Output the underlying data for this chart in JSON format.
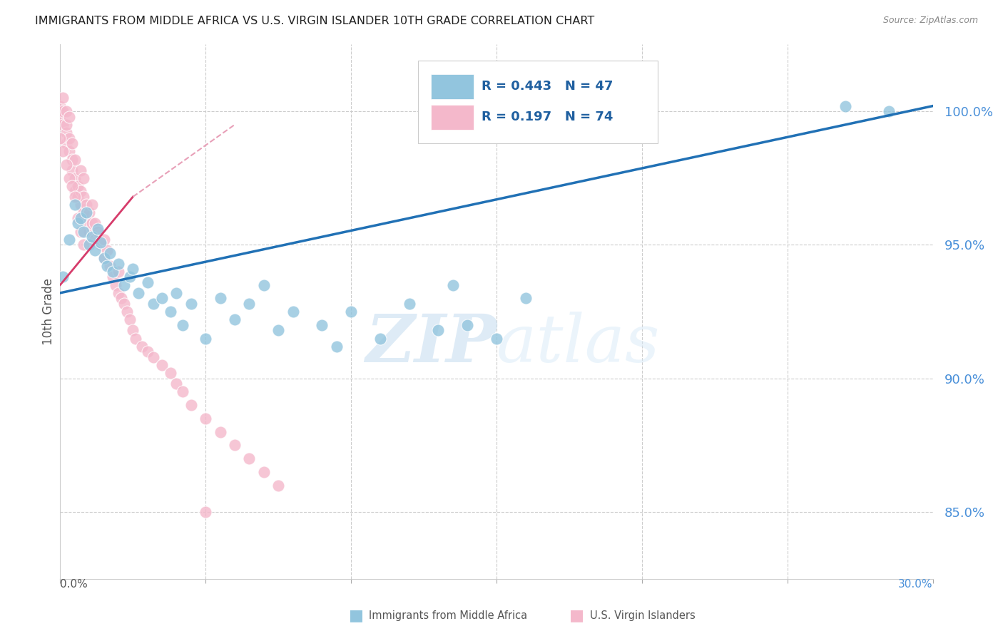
{
  "title": "IMMIGRANTS FROM MIDDLE AFRICA VS U.S. VIRGIN ISLANDER 10TH GRADE CORRELATION CHART",
  "source": "Source: ZipAtlas.com",
  "ylabel": "10th Grade",
  "right_yticks": [
    85.0,
    90.0,
    95.0,
    100.0
  ],
  "right_yticklabels": [
    "85.0%",
    "90.0%",
    "95.0%",
    "100.0%"
  ],
  "watermark_zip": "ZIP",
  "watermark_atlas": "atlas",
  "legend_blue_r": "R = 0.443",
  "legend_blue_n": "N = 47",
  "legend_pink_r": "R = 0.197",
  "legend_pink_n": "N = 74",
  "blue_color": "#92c5de",
  "pink_color": "#f4b8cb",
  "blue_line_color": "#2171b5",
  "pink_line_color": "#d63c6b",
  "pink_dash_color": "#e8a0b8",
  "blue_scatter": [
    [
      0.001,
      93.8
    ],
    [
      0.003,
      95.2
    ],
    [
      0.005,
      96.5
    ],
    [
      0.006,
      95.8
    ],
    [
      0.007,
      96.0
    ],
    [
      0.008,
      95.5
    ],
    [
      0.009,
      96.2
    ],
    [
      0.01,
      95.0
    ],
    [
      0.011,
      95.3
    ],
    [
      0.012,
      94.8
    ],
    [
      0.013,
      95.6
    ],
    [
      0.014,
      95.1
    ],
    [
      0.015,
      94.5
    ],
    [
      0.016,
      94.2
    ],
    [
      0.017,
      94.7
    ],
    [
      0.018,
      94.0
    ],
    [
      0.02,
      94.3
    ],
    [
      0.022,
      93.5
    ],
    [
      0.024,
      93.8
    ],
    [
      0.025,
      94.1
    ],
    [
      0.027,
      93.2
    ],
    [
      0.03,
      93.6
    ],
    [
      0.032,
      92.8
    ],
    [
      0.035,
      93.0
    ],
    [
      0.038,
      92.5
    ],
    [
      0.04,
      93.2
    ],
    [
      0.042,
      92.0
    ],
    [
      0.045,
      92.8
    ],
    [
      0.05,
      91.5
    ],
    [
      0.055,
      93.0
    ],
    [
      0.06,
      92.2
    ],
    [
      0.065,
      92.8
    ],
    [
      0.07,
      93.5
    ],
    [
      0.075,
      91.8
    ],
    [
      0.08,
      92.5
    ],
    [
      0.09,
      92.0
    ],
    [
      0.095,
      91.2
    ],
    [
      0.1,
      92.5
    ],
    [
      0.11,
      91.5
    ],
    [
      0.12,
      92.8
    ],
    [
      0.13,
      91.8
    ],
    [
      0.135,
      93.5
    ],
    [
      0.14,
      92.0
    ],
    [
      0.15,
      91.5
    ],
    [
      0.16,
      93.0
    ],
    [
      0.27,
      100.2
    ],
    [
      0.285,
      100.0
    ]
  ],
  "pink_scatter": [
    [
      0.0,
      100.2
    ],
    [
      0.0,
      99.8
    ],
    [
      0.001,
      100.5
    ],
    [
      0.001,
      99.5
    ],
    [
      0.001,
      100.0
    ],
    [
      0.002,
      99.2
    ],
    [
      0.002,
      98.8
    ],
    [
      0.002,
      99.5
    ],
    [
      0.002,
      100.0
    ],
    [
      0.003,
      99.0
    ],
    [
      0.003,
      98.5
    ],
    [
      0.003,
      99.8
    ],
    [
      0.004,
      98.2
    ],
    [
      0.004,
      97.8
    ],
    [
      0.004,
      98.8
    ],
    [
      0.005,
      97.5
    ],
    [
      0.005,
      97.0
    ],
    [
      0.005,
      98.2
    ],
    [
      0.006,
      97.2
    ],
    [
      0.006,
      96.8
    ],
    [
      0.007,
      96.5
    ],
    [
      0.007,
      97.0
    ],
    [
      0.007,
      97.8
    ],
    [
      0.008,
      96.2
    ],
    [
      0.008,
      96.8
    ],
    [
      0.008,
      97.5
    ],
    [
      0.009,
      95.8
    ],
    [
      0.009,
      96.5
    ],
    [
      0.01,
      95.5
    ],
    [
      0.01,
      96.2
    ],
    [
      0.011,
      95.8
    ],
    [
      0.011,
      96.5
    ],
    [
      0.012,
      95.2
    ],
    [
      0.012,
      95.8
    ],
    [
      0.013,
      95.5
    ],
    [
      0.014,
      95.0
    ],
    [
      0.015,
      94.5
    ],
    [
      0.015,
      95.2
    ],
    [
      0.016,
      94.8
    ],
    [
      0.017,
      94.2
    ],
    [
      0.018,
      93.8
    ],
    [
      0.019,
      93.5
    ],
    [
      0.02,
      93.2
    ],
    [
      0.02,
      94.0
    ],
    [
      0.021,
      93.0
    ],
    [
      0.022,
      92.8
    ],
    [
      0.023,
      92.5
    ],
    [
      0.024,
      92.2
    ],
    [
      0.025,
      91.8
    ],
    [
      0.026,
      91.5
    ],
    [
      0.028,
      91.2
    ],
    [
      0.03,
      91.0
    ],
    [
      0.032,
      90.8
    ],
    [
      0.035,
      90.5
    ],
    [
      0.038,
      90.2
    ],
    [
      0.04,
      89.8
    ],
    [
      0.042,
      89.5
    ],
    [
      0.045,
      89.0
    ],
    [
      0.05,
      88.5
    ],
    [
      0.055,
      88.0
    ],
    [
      0.06,
      87.5
    ],
    [
      0.065,
      87.0
    ],
    [
      0.07,
      86.5
    ],
    [
      0.075,
      86.0
    ],
    [
      0.0,
      99.0
    ],
    [
      0.001,
      98.5
    ],
    [
      0.002,
      98.0
    ],
    [
      0.003,
      97.5
    ],
    [
      0.004,
      97.2
    ],
    [
      0.005,
      96.8
    ],
    [
      0.006,
      96.0
    ],
    [
      0.007,
      95.5
    ],
    [
      0.008,
      95.0
    ],
    [
      0.05,
      85.0
    ]
  ],
  "xmin": 0.0,
  "xmax": 0.3,
  "ymin": 82.5,
  "ymax": 102.5,
  "blue_trendline": [
    [
      0.0,
      93.2
    ],
    [
      0.3,
      100.2
    ]
  ],
  "pink_trendline": [
    [
      0.0,
      93.5
    ],
    [
      0.025,
      96.8
    ]
  ]
}
